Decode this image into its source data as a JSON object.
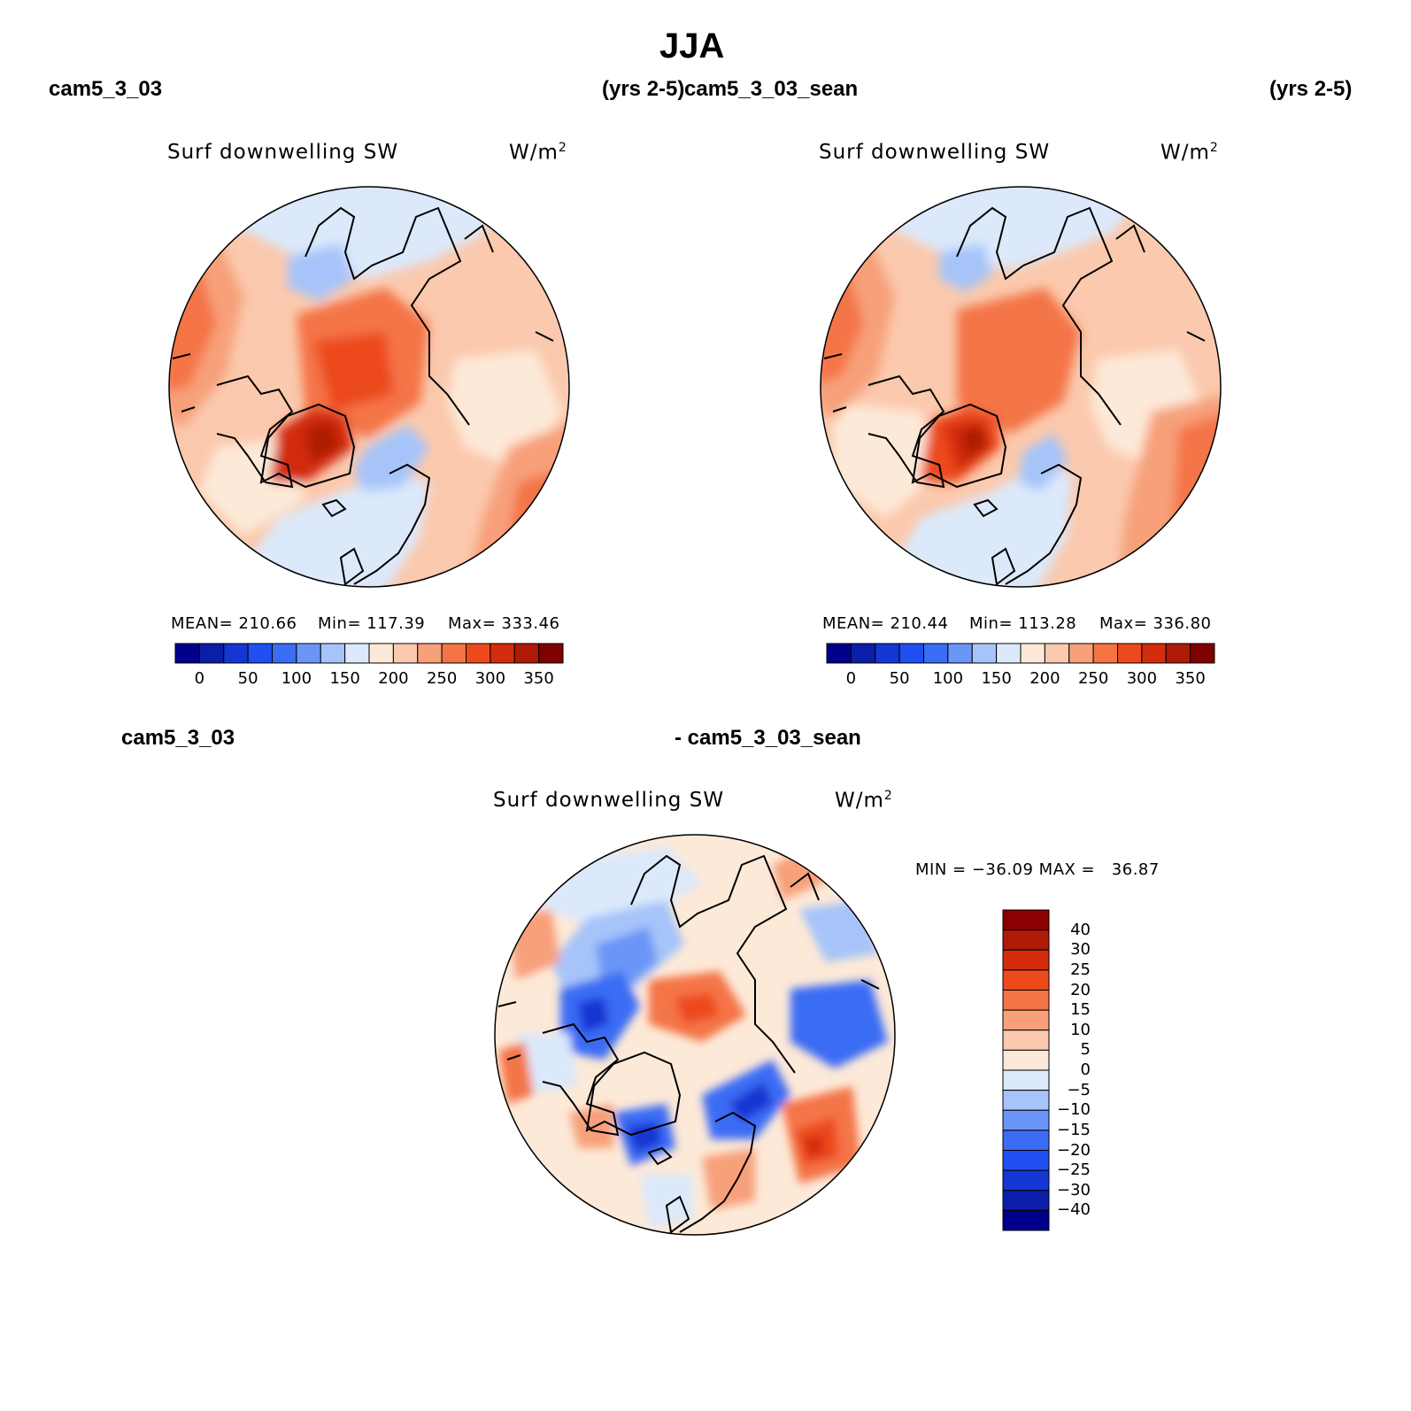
{
  "page": {
    "title": "JJA"
  },
  "panels": [
    {
      "case_name": "cam5_3_03",
      "years": "(yrs 2-5)",
      "variable": "Surf downwelling SW",
      "units_base": "W/m",
      "units_sup": "2",
      "mean_label": "MEAN= 210.66",
      "min_label": "Min= 117.39",
      "max_label": "Max= 333.46"
    },
    {
      "case_name": "cam5_3_03_sean",
      "years": "(yrs 2-5)",
      "variable": "Surf downwelling SW",
      "units_base": "W/m",
      "units_sup": "2",
      "mean_label": "MEAN= 210.44",
      "min_label": "Min= 113.28",
      "max_label": "Max= 336.80"
    }
  ],
  "diff_panel": {
    "case_a": "cam5_3_03",
    "case_b": "- cam5_3_03_sean",
    "variable": "Surf downwelling SW",
    "units_base": "W/m",
    "units_sup": "2",
    "minmax_label": "MIN = −36.09 MAX =   36.87"
  },
  "colorbars": {
    "abs": {
      "colors": [
        "#00008b",
        "#0b1ea8",
        "#1436d2",
        "#1f4ff0",
        "#3a6cf4",
        "#6b96f7",
        "#a6c4f9",
        "#dbe9fb",
        "#fde9d8",
        "#fbc9ad",
        "#f7a07a",
        "#f47446",
        "#ec4a1c",
        "#d22c0c",
        "#ad1a05",
        "#7f0000"
      ],
      "labels": [
        "0",
        "50",
        "100",
        "150",
        "200",
        "250",
        "300",
        "350"
      ]
    },
    "diff": {
      "colors": [
        "#8b0000",
        "#ad1a05",
        "#d22c0c",
        "#ec4a1c",
        "#f47446",
        "#f7a07a",
        "#fbc9ad",
        "#fde9d8",
        "#dbe9fb",
        "#a6c4f9",
        "#6b96f7",
        "#3a6cf4",
        "#1f4ff0",
        "#1436d2",
        "#0b1ea8",
        "#00008b"
      ],
      "labels": [
        "40",
        "30",
        "25",
        "20",
        "15",
        "10",
        "5",
        "0",
        "−5",
        "−10",
        "−15",
        "−20",
        "−25",
        "−30",
        "−40"
      ]
    }
  },
  "map_colors": {
    "bg_warm": "#fbc9ad",
    "bg_cool": "#dbe9fb",
    "light_warm": "#fde9d8",
    "mid_warm": "#f7a07a",
    "warm": "#f47446",
    "hot": "#ec4a1c",
    "hotter": "#d22c0c",
    "hottest": "#ad1a05",
    "blue_light": "#a6c4f9",
    "blue_mid": "#6b96f7",
    "blue": "#3a6cf4",
    "blue_dark": "#1436d2"
  }
}
